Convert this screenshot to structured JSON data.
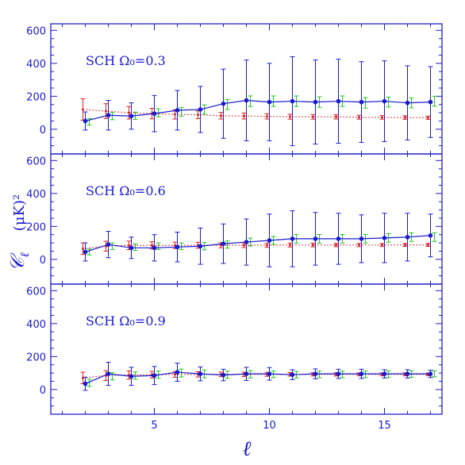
{
  "colors": {
    "axis": "#2020c8",
    "blue": "#1a1ad0",
    "green": "#22c822",
    "red": "#e02020"
  },
  "chart_data": {
    "type": "scatter",
    "xlabel": "ℓ",
    "ylabel_symbol": "𝒞",
    "ylabel_sub": "ℓ",
    "ylabel_units": "(μK)²",
    "xlim": [
      0.5,
      17.5
    ],
    "ylim": [
      -150,
      640
    ],
    "x_ticks": [
      5,
      10,
      15
    ],
    "y_ticks": [
      0,
      200,
      400,
      600
    ],
    "panels": [
      {
        "label": "SCH  Ω₀=0.3",
        "x": [
          2,
          3,
          4,
          5,
          6,
          7,
          8,
          9,
          10,
          11,
          12,
          13,
          14,
          15,
          16,
          17
        ],
        "series": [
          {
            "name": "blue",
            "type": "line+errorbar",
            "values": [
              50,
              85,
              80,
              95,
              115,
              120,
              155,
              175,
              165,
              170,
              165,
              170,
              165,
              170,
              160,
              165
            ],
            "errors": [
              55,
              90,
              80,
              110,
              120,
              140,
              210,
              245,
              235,
              270,
              255,
              255,
              245,
              245,
              225,
              215
            ]
          },
          {
            "name": "green",
            "type": "errorbar",
            "values": [
              45,
              80,
              82,
              100,
              105,
              120,
              150,
              170,
              170,
              170,
              165,
              170,
              160,
              165,
              160,
              170
            ],
            "errors": [
              20,
              22,
              22,
              24,
              26,
              28,
              30,
              32,
              32,
              32,
              32,
              32,
              32,
              30,
              30,
              30
            ]
          },
          {
            "name": "red",
            "type": "dotted+errorbar",
            "values": [
              120,
              110,
              100,
              95,
              90,
              88,
              82,
              80,
              78,
              76,
              75,
              75,
              73,
              72,
              71,
              70
            ],
            "errors": [
              65,
              45,
              38,
              32,
              28,
              24,
              20,
              18,
              16,
              15,
              14,
              13,
              12,
              11,
              11,
              10
            ]
          }
        ]
      },
      {
        "label": "SCH  Ω₀=0.6",
        "x": [
          2,
          3,
          4,
          5,
          6,
          7,
          8,
          9,
          10,
          11,
          12,
          13,
          14,
          15,
          16,
          17
        ],
        "series": [
          {
            "name": "blue",
            "type": "line+errorbar",
            "values": [
              45,
              90,
              70,
              70,
              75,
              80,
              95,
              105,
              115,
              125,
              125,
              125,
              125,
              130,
              135,
              145
            ],
            "errors": [
              55,
              80,
              65,
              80,
              90,
              110,
              120,
              140,
              160,
              170,
              160,
              155,
              145,
              150,
              145,
              130
            ]
          },
          {
            "name": "green",
            "type": "errorbar",
            "values": [
              45,
              80,
              75,
              80,
              80,
              80,
              90,
              105,
              115,
              125,
              125,
              125,
              125,
              130,
              135,
              135
            ],
            "errors": [
              18,
              20,
              20,
              20,
              20,
              22,
              22,
              24,
              24,
              26,
              26,
              26,
              26,
              26,
              26,
              26
            ]
          },
          {
            "name": "red",
            "type": "dotted+errorbar",
            "values": [
              65,
              80,
              85,
              85,
              85,
              86,
              86,
              86,
              86,
              87,
              87,
              87,
              87,
              87,
              88,
              88
            ],
            "errors": [
              35,
              30,
              26,
              22,
              20,
              18,
              16,
              14,
              13,
              12,
              11,
              10,
              10,
              9,
              9,
              9
            ]
          }
        ]
      },
      {
        "label": "SCH  Ω₀=0.9",
        "x": [
          2,
          3,
          4,
          5,
          6,
          7,
          8,
          9,
          10,
          11,
          12,
          13,
          14,
          15,
          16,
          17
        ],
        "series": [
          {
            "name": "blue",
            "type": "line+errorbar",
            "values": [
              35,
              95,
              80,
              85,
              105,
              95,
              88,
              95,
              95,
              90,
              95,
              95,
              95,
              95,
              95,
              95
            ],
            "errors": [
              40,
              70,
              55,
              55,
              55,
              42,
              35,
              40,
              38,
              30,
              30,
              28,
              28,
              25,
              25,
              22
            ]
          },
          {
            "name": "green",
            "type": "errorbar",
            "values": [
              40,
              80,
              85,
              90,
              100,
              95,
              90,
              92,
              92,
              90,
              92,
              92,
              92,
              92,
              94,
              95
            ],
            "errors": [
              22,
              22,
              22,
              22,
              24,
              24,
              22,
              22,
              20,
              20,
              20,
              20,
              20,
              20,
              20,
              18
            ]
          },
          {
            "name": "red",
            "type": "dotted+errorbar",
            "values": [
              70,
              85,
              88,
              90,
              92,
              92,
              92,
              92,
              92,
              92,
              92,
              92,
              92,
              92,
              92,
              92
            ],
            "errors": [
              35,
              30,
              25,
              20,
              18,
              16,
              14,
              13,
              12,
              11,
              10,
              10,
              9,
              9,
              9,
              8
            ]
          }
        ]
      }
    ]
  }
}
